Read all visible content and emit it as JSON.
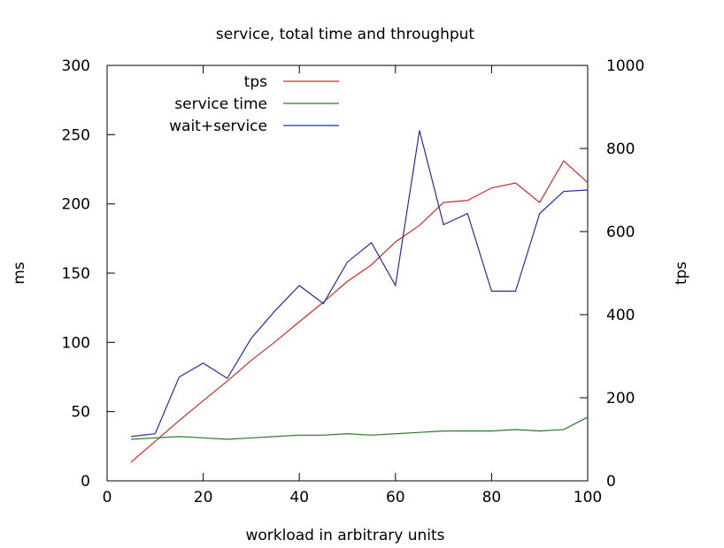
{
  "chart_data": {
    "type": "line",
    "title": "service, total time and throughput",
    "xlabel": "workload in arbitrary units",
    "ylabel": "ms",
    "y2label": "tps",
    "xlim": [
      0,
      100
    ],
    "ylim": [
      0,
      300
    ],
    "y2lim": [
      0,
      1000
    ],
    "xticks": [
      "0",
      "20",
      "40",
      "60",
      "80",
      "100"
    ],
    "yticks": [
      "0",
      "50",
      "100",
      "150",
      "200",
      "250",
      "300"
    ],
    "y2ticks": [
      "0",
      "200",
      "400",
      "600",
      "800",
      "1000"
    ],
    "grid": false,
    "legend": "top-left",
    "x": [
      5,
      10,
      15,
      20,
      25,
      30,
      35,
      40,
      45,
      50,
      55,
      60,
      65,
      70,
      75,
      80,
      85,
      90,
      95,
      100
    ],
    "series": [
      {
        "name": "tps",
        "axis": "right",
        "color": "#cc2a2a",
        "values": [
          45,
          95,
          145,
          193,
          240,
          290,
          335,
          383,
          430,
          480,
          520,
          575,
          615,
          670,
          675,
          705,
          717,
          670,
          770,
          718
        ]
      },
      {
        "name": "service time",
        "axis": "left",
        "color": "#2a7a2a",
        "values": [
          30,
          31,
          32,
          31,
          30,
          31,
          32,
          33,
          33,
          34,
          33,
          34,
          35,
          36,
          36,
          36,
          37,
          36,
          37,
          46
        ]
      },
      {
        "name": "wait+service",
        "axis": "left",
        "color": "#2a2aa8",
        "values": [
          32,
          34,
          75,
          85,
          74,
          103,
          123,
          141,
          128,
          158,
          172,
          141,
          253,
          185,
          193,
          137,
          137,
          193,
          209,
          210
        ]
      }
    ]
  }
}
